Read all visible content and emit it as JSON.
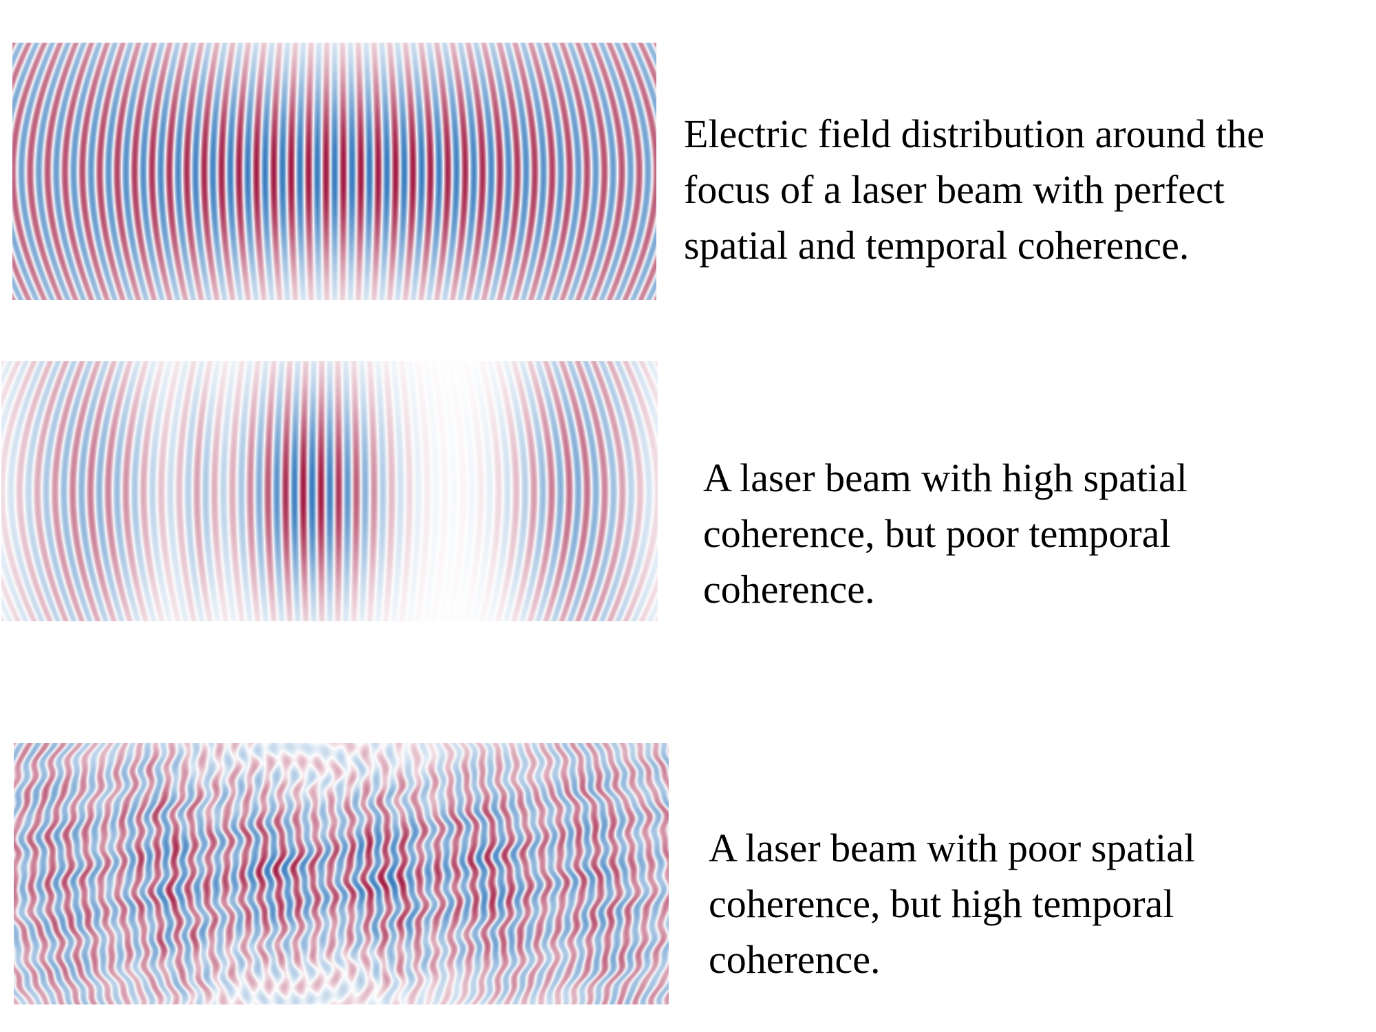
{
  "panels": [
    {
      "caption_lines": [
        "Electric field distribution around the",
        "focus of a laser beam with perfect",
        "spatial and temporal coherence."
      ]
    },
    {
      "caption_lines": [
        "A laser beam with high spatial",
        "coherence, but poor temporal",
        "coherence."
      ]
    },
    {
      "caption_lines": [
        "A laser beam with poor spatial",
        "coherence, but high temporal",
        "coherence."
      ]
    }
  ],
  "colors": {
    "positive_field": "#a11d45",
    "negative_field": "#3b7dbf",
    "background": "#ffffff",
    "text": "#000000"
  }
}
